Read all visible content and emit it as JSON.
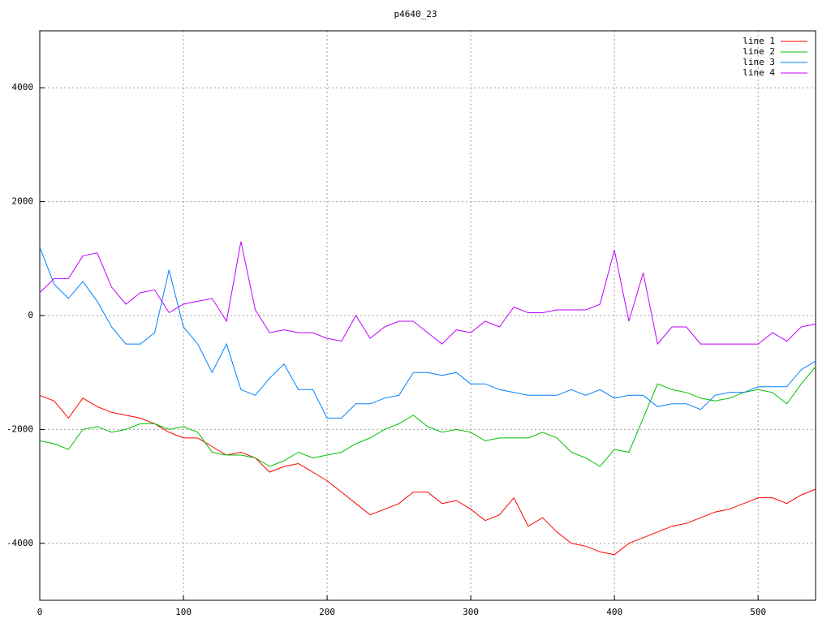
{
  "chart_data": {
    "type": "line",
    "title": "p4640_23",
    "x": [
      0,
      10,
      20,
      30,
      40,
      50,
      60,
      70,
      80,
      90,
      100,
      110,
      120,
      130,
      140,
      150,
      160,
      170,
      180,
      190,
      200,
      210,
      220,
      230,
      240,
      250,
      260,
      270,
      280,
      290,
      300,
      310,
      320,
      330,
      340,
      350,
      360,
      370,
      380,
      390,
      400,
      410,
      420,
      430,
      440,
      450,
      460,
      470,
      480,
      490,
      500,
      510,
      520,
      530,
      540
    ],
    "xlim": [
      0,
      540
    ],
    "xticks": [
      0,
      100,
      200,
      300,
      400,
      500
    ],
    "ylim": [
      -5000,
      5000
    ],
    "yticks": [
      -4000,
      -2000,
      0,
      2000,
      4000
    ],
    "grid": true,
    "legend": "top-right",
    "series": [
      {
        "name": "line 1",
        "color": "#ff0000",
        "values": [
          -1400,
          -1500,
          -1800,
          -1450,
          -1600,
          -1700,
          -1750,
          -1800,
          -1900,
          -2050,
          -2150,
          -2150,
          -2300,
          -2450,
          -2400,
          -2500,
          -2750,
          -2650,
          -2600,
          -2750,
          -2900,
          -3100,
          -3300,
          -3500,
          -3400,
          -3300,
          -3100,
          -3100,
          -3300,
          -3250,
          -3400,
          -3600,
          -3500,
          -3200,
          -3700,
          -3550,
          -3800,
          -4000,
          -4050,
          -4150,
          -4200,
          -4000,
          -3900,
          -3800,
          -3700,
          -3650,
          -3550,
          -3450,
          -3400,
          -3300,
          -3200,
          -3200,
          -3300,
          -3150,
          -3050
        ]
      },
      {
        "name": "line 2",
        "color": "#00c000",
        "values": [
          -2200,
          -2250,
          -2350,
          -2000,
          -1950,
          -2050,
          -2000,
          -1900,
          -1900,
          -2000,
          -1950,
          -2050,
          -2400,
          -2450,
          -2450,
          -2500,
          -2650,
          -2550,
          -2400,
          -2500,
          -2450,
          -2400,
          -2250,
          -2150,
          -2000,
          -1900,
          -1750,
          -1950,
          -2050,
          -2000,
          -2050,
          -2200,
          -2150,
          -2150,
          -2150,
          -2050,
          -2150,
          -2400,
          -2500,
          -2650,
          -2350,
          -2400,
          -1800,
          -1200,
          -1300,
          -1350,
          -1450,
          -1500,
          -1450,
          -1350,
          -1300,
          -1350,
          -1550,
          -1200,
          -900
        ]
      },
      {
        "name": "line 3",
        "color": "#0080ff",
        "values": [
          1200,
          550,
          300,
          600,
          250,
          -200,
          -500,
          -500,
          -300,
          800,
          -200,
          -500,
          -1000,
          -500,
          -1300,
          -1400,
          -1100,
          -850,
          -1300,
          -1300,
          -1800,
          -1800,
          -1550,
          -1550,
          -1450,
          -1400,
          -1000,
          -1000,
          -1050,
          -1000,
          -1200,
          -1200,
          -1300,
          -1350,
          -1400,
          -1400,
          -1400,
          -1300,
          -1400,
          -1300,
          -1450,
          -1400,
          -1400,
          -1600,
          -1550,
          -1550,
          -1650,
          -1400,
          -1350,
          -1350,
          -1250,
          -1250,
          -1250,
          -950,
          -800
        ]
      },
      {
        "name": "line 4",
        "color": "#c000ff",
        "values": [
          400,
          650,
          650,
          1050,
          1100,
          500,
          200,
          400,
          450,
          50,
          200,
          250,
          300,
          -100,
          1300,
          100,
          -300,
          -250,
          -300,
          -300,
          -400,
          -450,
          0,
          -400,
          -200,
          -100,
          -100,
          -300,
          -500,
          -250,
          -300,
          -100,
          -200,
          150,
          50,
          50,
          100,
          100,
          100,
          200,
          1150,
          -100,
          750,
          -500,
          -200,
          -200,
          -500,
          -500,
          -500,
          -500,
          -500,
          -300,
          -450,
          -200,
          -150
        ]
      }
    ]
  }
}
